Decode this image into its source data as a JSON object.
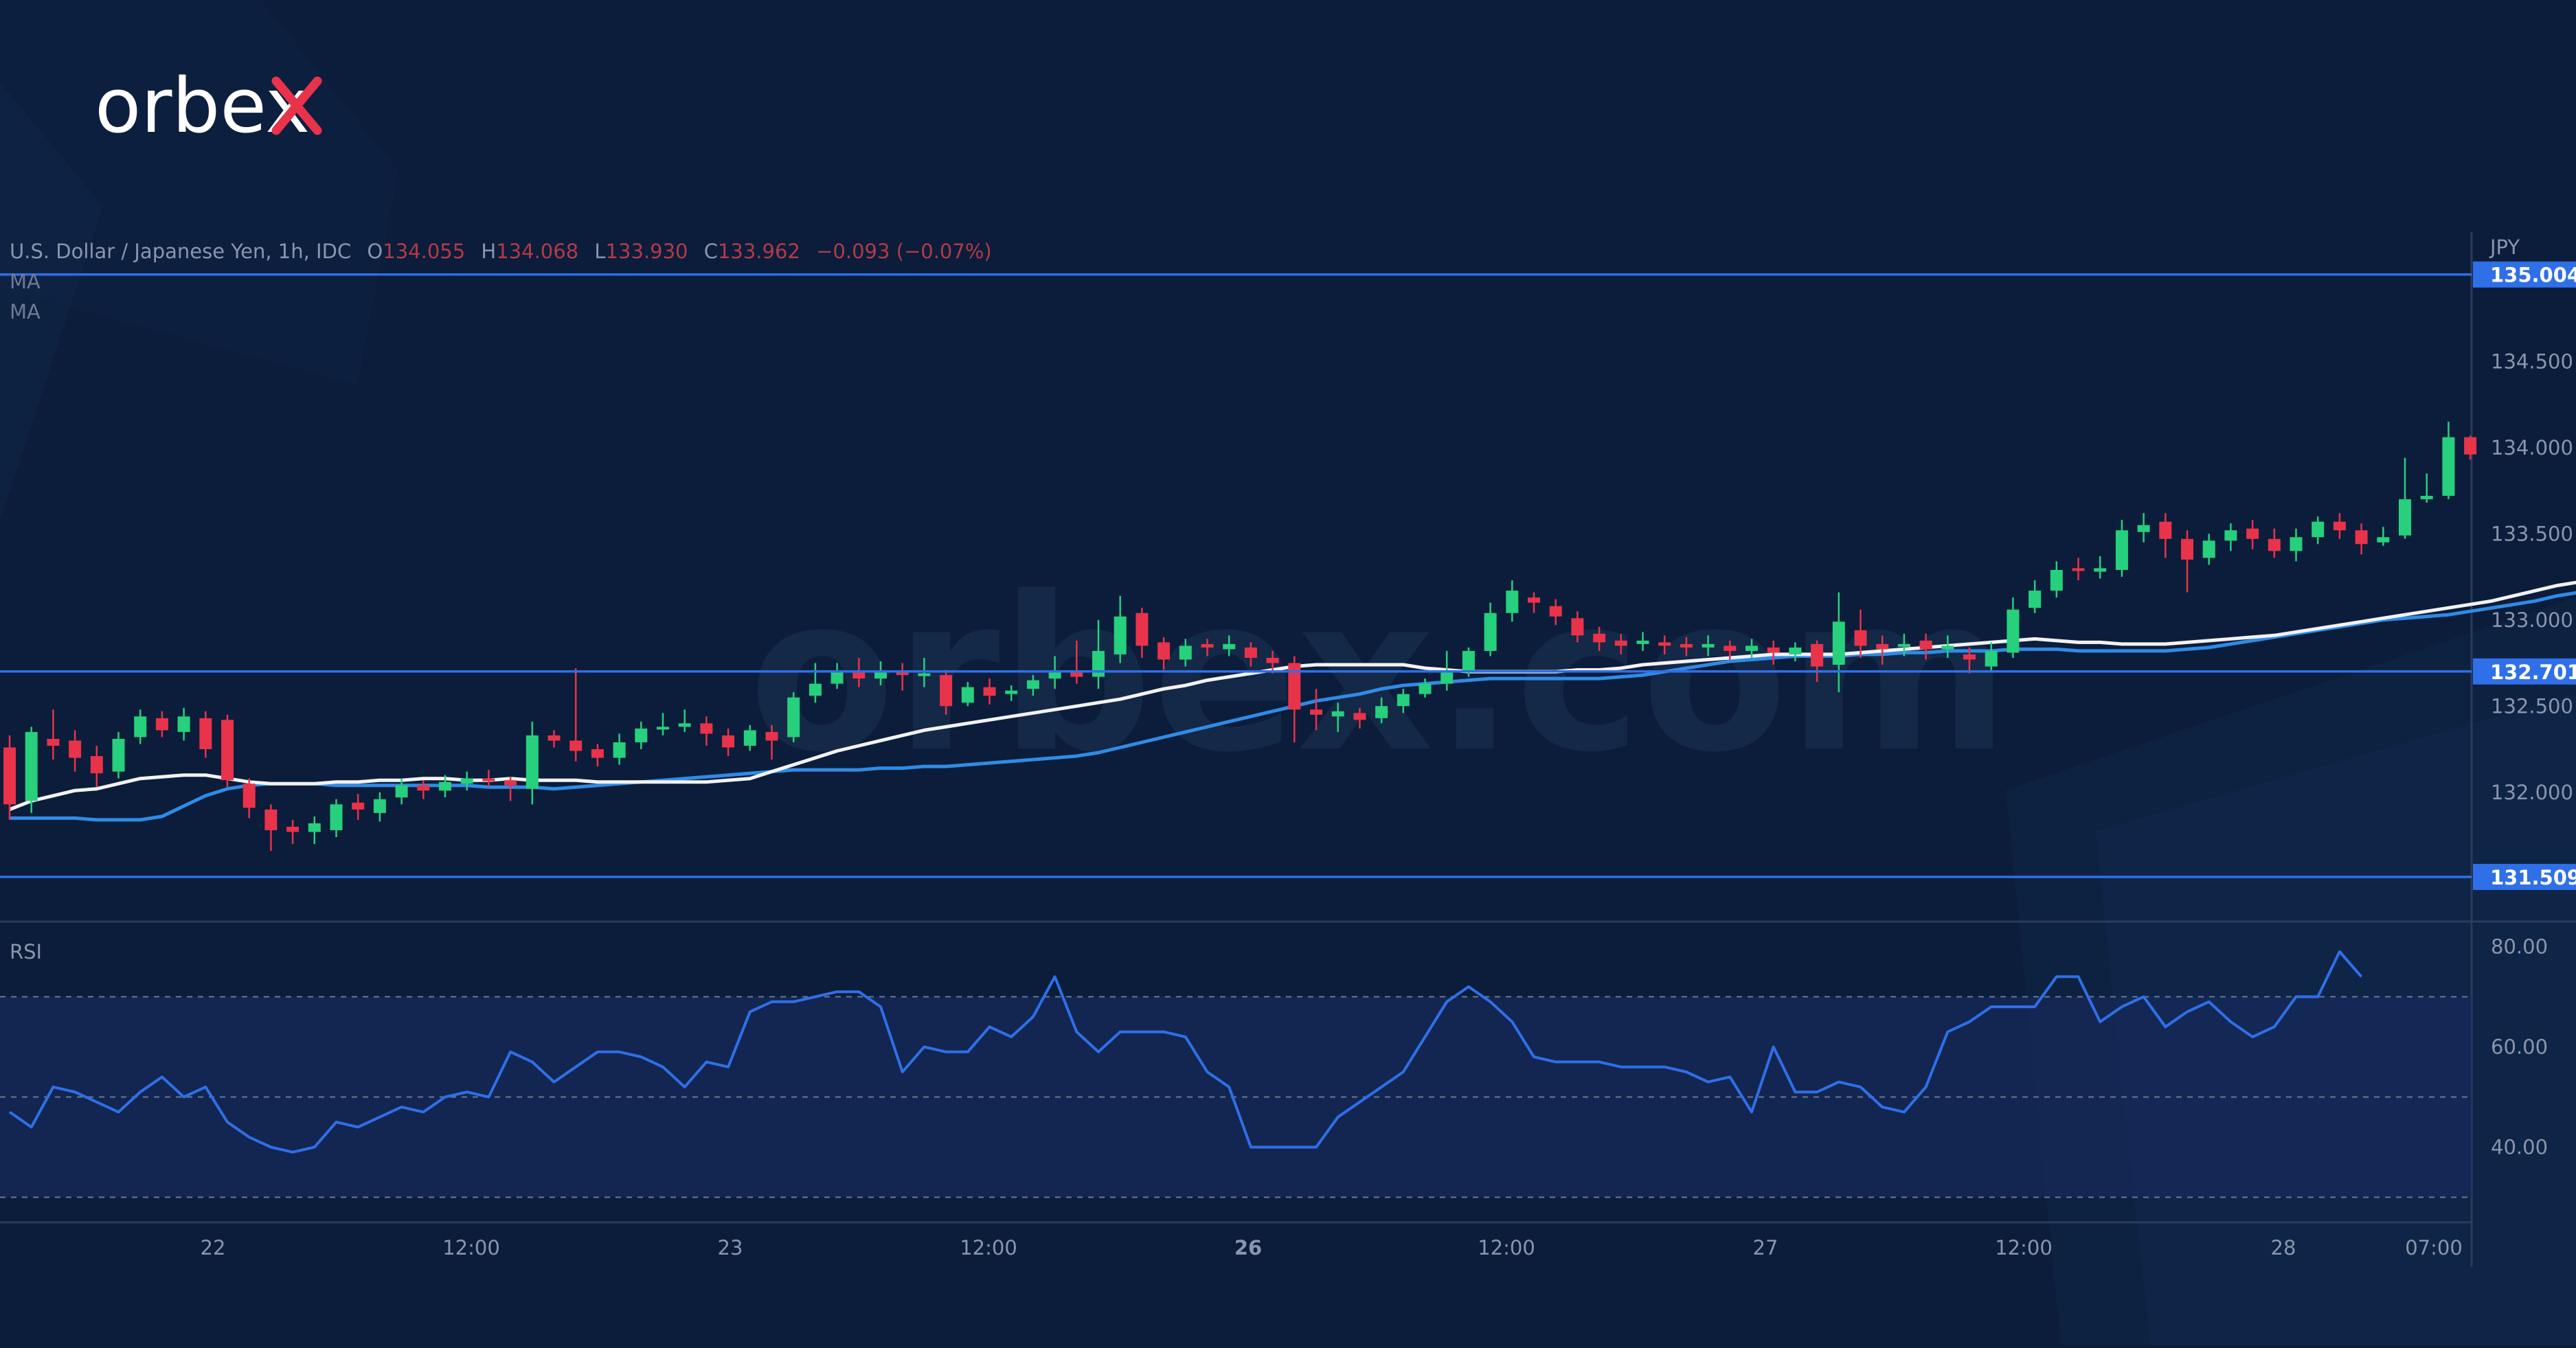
{
  "brand": {
    "logo_text": "orbex",
    "watermark": "orbex.com"
  },
  "header": {
    "symbol": "U.S. Dollar / Japanese Yen, 1h, IDC",
    "o_label": "O",
    "o_value": "134.055",
    "h_label": "H",
    "h_value": "134.068",
    "l_label": "L",
    "l_value": "133.930",
    "c_label": "C",
    "c_value": "133.962",
    "change": "−0.093 (−0.07%)",
    "ma1": "MA",
    "ma2": "MA"
  },
  "colors": {
    "bg": "#0b1d3a",
    "up": "#26d07c",
    "down": "#e8334a",
    "level": "#2f6fe8",
    "ma_fast": "#f2f2f2",
    "ma_slow": "#2f8be6",
    "rsi": "#2f6fe8",
    "text": "#8a96ab"
  },
  "chart_data": [
    {
      "type": "candlestick",
      "title": "U.S. Dollar / Japanese Yen, 1h, IDC",
      "currency": "JPY",
      "ylim": [
        131.25,
        135.25
      ],
      "y_ticks": [
        "134.500",
        "134.000",
        "133.500",
        "133.000",
        "132.500",
        "132.000"
      ],
      "x_ticks": [
        "22",
        "12:00",
        "23",
        "12:00",
        "26",
        "12:00",
        "27",
        "12:00",
        "28",
        "07:00"
      ],
      "levels": [
        {
          "label": "135.004",
          "value": 135.004
        },
        {
          "label": "132.701",
          "value": 132.701
        },
        {
          "label": "131.509",
          "value": 131.509
        }
      ],
      "candles": [
        [
          132.26,
          131.93,
          132.33,
          131.84
        ],
        [
          131.95,
          132.35,
          132.38,
          131.88
        ],
        [
          132.31,
          132.27,
          132.48,
          132.19
        ],
        [
          132.3,
          132.2,
          132.36,
          132.12
        ],
        [
          132.21,
          132.11,
          132.27,
          132.03
        ],
        [
          132.12,
          132.31,
          132.35,
          132.08
        ],
        [
          132.32,
          132.44,
          132.48,
          132.28
        ],
        [
          132.43,
          132.36,
          132.47,
          132.32
        ],
        [
          132.35,
          132.44,
          132.49,
          132.3
        ],
        [
          132.43,
          132.25,
          132.47,
          132.2
        ],
        [
          132.42,
          132.07,
          132.45,
          132.03
        ],
        [
          132.05,
          131.91,
          132.08,
          131.85
        ],
        [
          131.9,
          131.78,
          131.93,
          131.66
        ],
        [
          131.8,
          131.77,
          131.84,
          131.7
        ],
        [
          131.77,
          131.82,
          131.86,
          131.7
        ],
        [
          131.78,
          131.93,
          131.96,
          131.74
        ],
        [
          131.94,
          131.9,
          131.99,
          131.84
        ],
        [
          131.88,
          131.96,
          132.0,
          131.83
        ],
        [
          131.97,
          132.04,
          132.08,
          131.93
        ],
        [
          132.04,
          132.01,
          132.07,
          131.96
        ],
        [
          132.01,
          132.06,
          132.1,
          131.97
        ],
        [
          132.05,
          132.08,
          132.12,
          132.01
        ],
        [
          132.08,
          132.07,
          132.13,
          132.03
        ],
        [
          132.07,
          132.04,
          132.09,
          131.95
        ],
        [
          132.02,
          132.33,
          132.41,
          131.93
        ],
        [
          132.33,
          132.3,
          132.36,
          132.26
        ],
        [
          132.3,
          132.24,
          132.72,
          132.18
        ],
        [
          132.25,
          132.2,
          132.28,
          132.15
        ],
        [
          132.2,
          132.29,
          132.34,
          132.16
        ],
        [
          132.29,
          132.37,
          132.41,
          132.25
        ],
        [
          132.37,
          132.38,
          132.46,
          132.33
        ],
        [
          132.38,
          132.4,
          132.48,
          132.35
        ],
        [
          132.4,
          132.34,
          132.44,
          132.27
        ],
        [
          132.33,
          132.26,
          132.37,
          132.21
        ],
        [
          132.27,
          132.36,
          132.39,
          132.24
        ],
        [
          132.35,
          132.3,
          132.39,
          132.19
        ],
        [
          132.32,
          132.55,
          132.58,
          132.29
        ],
        [
          132.56,
          132.63,
          132.75,
          132.52
        ],
        [
          132.63,
          132.7,
          132.75,
          132.6
        ],
        [
          132.7,
          132.66,
          132.78,
          132.61
        ],
        [
          132.66,
          132.7,
          132.76,
          132.62
        ],
        [
          132.7,
          132.68,
          132.75,
          132.59
        ],
        [
          132.69,
          132.69,
          132.78,
          132.61
        ],
        [
          132.68,
          132.5,
          132.71,
          132.45
        ],
        [
          132.52,
          132.61,
          132.64,
          132.5
        ],
        [
          132.61,
          132.56,
          132.66,
          132.51
        ],
        [
          132.57,
          132.59,
          132.62,
          132.53
        ],
        [
          132.6,
          132.65,
          132.68,
          132.56
        ],
        [
          132.66,
          132.7,
          132.79,
          132.6
        ],
        [
          132.7,
          132.67,
          132.88,
          132.63
        ],
        [
          132.67,
          132.82,
          133.0,
          132.6
        ],
        [
          132.8,
          133.02,
          133.14,
          132.75
        ],
        [
          133.04,
          132.85,
          133.07,
          132.78
        ],
        [
          132.87,
          132.77,
          132.9,
          132.71
        ],
        [
          132.77,
          132.85,
          132.89,
          132.73
        ],
        [
          132.86,
          132.84,
          132.89,
          132.79
        ],
        [
          132.83,
          132.86,
          132.91,
          132.79
        ],
        [
          132.84,
          132.78,
          132.87,
          132.73
        ],
        [
          132.78,
          132.75,
          132.82,
          132.69
        ],
        [
          132.75,
          132.48,
          132.79,
          132.29
        ],
        [
          132.48,
          132.45,
          132.6,
          132.36
        ],
        [
          132.44,
          132.47,
          132.52,
          132.35
        ],
        [
          132.46,
          132.42,
          132.49,
          132.37
        ],
        [
          132.43,
          132.5,
          132.55,
          132.4
        ],
        [
          132.5,
          132.57,
          132.6,
          132.46
        ],
        [
          132.57,
          132.63,
          132.66,
          132.55
        ],
        [
          132.63,
          132.7,
          132.82,
          132.59
        ],
        [
          132.7,
          132.82,
          132.84,
          132.67
        ],
        [
          132.82,
          133.04,
          133.1,
          132.79
        ],
        [
          133.04,
          133.17,
          133.23,
          132.99
        ],
        [
          133.13,
          133.1,
          133.16,
          133.04
        ],
        [
          133.08,
          133.02,
          133.12,
          132.97
        ],
        [
          133.01,
          132.91,
          133.05,
          132.87
        ],
        [
          132.92,
          132.87,
          132.96,
          132.82
        ],
        [
          132.88,
          132.85,
          132.92,
          132.8
        ],
        [
          132.86,
          132.88,
          132.93,
          132.82
        ],
        [
          132.87,
          132.85,
          132.91,
          132.8
        ],
        [
          132.86,
          132.84,
          132.9,
          132.79
        ],
        [
          132.84,
          132.86,
          132.91,
          132.79
        ],
        [
          132.85,
          132.82,
          132.88,
          132.77
        ],
        [
          132.82,
          132.85,
          132.89,
          132.78
        ],
        [
          132.84,
          132.81,
          132.88,
          132.74
        ],
        [
          132.8,
          132.84,
          132.87,
          132.76
        ],
        [
          132.86,
          132.73,
          132.88,
          132.64
        ],
        [
          132.74,
          132.99,
          133.16,
          132.58
        ],
        [
          132.94,
          132.85,
          133.06,
          132.78
        ],
        [
          132.86,
          132.83,
          132.91,
          132.74
        ],
        [
          132.85,
          132.86,
          132.92,
          132.79
        ],
        [
          132.88,
          132.83,
          132.92,
          132.77
        ],
        [
          132.83,
          132.85,
          132.91,
          132.78
        ],
        [
          132.8,
          132.77,
          132.84,
          132.69
        ],
        [
          132.73,
          132.82,
          132.87,
          132.7
        ],
        [
          132.81,
          133.06,
          133.13,
          132.78
        ],
        [
          133.07,
          133.17,
          133.23,
          133.04
        ],
        [
          133.17,
          133.29,
          133.34,
          133.13
        ],
        [
          133.3,
          133.29,
          133.36,
          133.23
        ],
        [
          133.28,
          133.3,
          133.37,
          133.24
        ],
        [
          133.29,
          133.52,
          133.58,
          133.25
        ],
        [
          133.51,
          133.55,
          133.62,
          133.45
        ],
        [
          133.57,
          133.47,
          133.62,
          133.36
        ],
        [
          133.47,
          133.35,
          133.52,
          133.16
        ],
        [
          133.36,
          133.46,
          133.5,
          133.32
        ],
        [
          133.46,
          133.52,
          133.56,
          133.4
        ],
        [
          133.53,
          133.47,
          133.58,
          133.41
        ],
        [
          133.47,
          133.4,
          133.53,
          133.36
        ],
        [
          133.4,
          133.48,
          133.53,
          133.34
        ],
        [
          133.48,
          133.57,
          133.6,
          133.44
        ],
        [
          133.57,
          133.52,
          133.62,
          133.47
        ],
        [
          133.52,
          133.44,
          133.56,
          133.38
        ],
        [
          133.45,
          133.48,
          133.54,
          133.43
        ],
        [
          133.49,
          133.7,
          133.94,
          133.47
        ],
        [
          133.7,
          133.72,
          133.85,
          133.68
        ],
        [
          133.72,
          134.06,
          134.15,
          133.7
        ],
        [
          134.06,
          133.96,
          134.07,
          133.93
        ]
      ],
      "ma_fast": {
        "name": "MA",
        "values": [
          131.9,
          131.95,
          131.98,
          132.01,
          132.02,
          132.05,
          132.08,
          132.09,
          132.1,
          132.1,
          132.08,
          132.06,
          132.05,
          132.05,
          132.05,
          132.06,
          132.06,
          132.07,
          132.07,
          132.08,
          132.08,
          132.07,
          132.07,
          132.08,
          132.07,
          132.07,
          132.07,
          132.06,
          132.06,
          132.06,
          132.06,
          132.06,
          132.06,
          132.07,
          132.08,
          132.12,
          132.16,
          132.2,
          132.24,
          132.27,
          132.3,
          132.33,
          132.36,
          132.38,
          132.4,
          132.42,
          132.44,
          132.46,
          132.48,
          132.5,
          132.52,
          132.54,
          132.57,
          132.6,
          132.62,
          132.65,
          132.67,
          132.69,
          132.71,
          132.73,
          132.74,
          132.74,
          132.74,
          132.74,
          132.74,
          132.72,
          132.71,
          132.7,
          132.7,
          132.7,
          132.7,
          132.7,
          132.71,
          132.71,
          132.72,
          132.74,
          132.75,
          132.76,
          132.77,
          132.78,
          132.79,
          132.8,
          132.8,
          132.8,
          132.8,
          132.81,
          132.82,
          132.83,
          132.84,
          132.85,
          132.86,
          132.87,
          132.88,
          132.89,
          132.88,
          132.87,
          132.87,
          132.86,
          132.86,
          132.86,
          132.87,
          132.88,
          132.89,
          132.9,
          132.91,
          132.93,
          132.95,
          132.97,
          132.99,
          133.01,
          133.03,
          133.05,
          133.07,
          133.09,
          133.11,
          133.14,
          133.17,
          133.2,
          133.22,
          133.24,
          133.27,
          133.3,
          133.33,
          133.37,
          133.44,
          133.48
        ]
      },
      "ma_slow": {
        "name": "MA",
        "values": [
          131.85,
          131.85,
          131.85,
          131.85,
          131.84,
          131.84,
          131.84,
          131.86,
          131.92,
          131.98,
          132.02,
          132.04,
          132.05,
          132.05,
          132.05,
          132.04,
          132.04,
          132.04,
          132.04,
          132.04,
          132.04,
          132.04,
          132.03,
          132.03,
          132.03,
          132.02,
          132.03,
          132.04,
          132.05,
          132.06,
          132.07,
          132.08,
          132.09,
          132.1,
          132.11,
          132.12,
          132.13,
          132.13,
          132.13,
          132.13,
          132.14,
          132.14,
          132.15,
          132.15,
          132.16,
          132.17,
          132.18,
          132.19,
          132.2,
          132.21,
          132.23,
          132.26,
          132.29,
          132.32,
          132.35,
          132.38,
          132.41,
          132.44,
          132.47,
          132.5,
          132.53,
          132.55,
          132.57,
          132.6,
          132.62,
          132.63,
          132.64,
          132.65,
          132.66,
          132.66,
          132.66,
          132.66,
          132.66,
          132.66,
          132.67,
          132.68,
          132.7,
          132.72,
          132.74,
          132.76,
          132.77,
          132.78,
          132.79,
          132.79,
          132.79,
          132.8,
          132.8,
          132.81,
          132.81,
          132.82,
          132.82,
          132.82,
          132.83,
          132.83,
          132.83,
          132.82,
          132.82,
          132.82,
          132.82,
          132.82,
          132.83,
          132.84,
          132.86,
          132.88,
          132.9,
          132.92,
          132.94,
          132.96,
          132.98,
          133.0,
          133.01,
          133.02,
          133.03,
          133.05,
          133.07,
          133.09,
          133.11,
          133.14,
          133.16,
          133.18,
          133.2,
          133.22,
          133.25,
          133.29,
          133.35,
          133.4
        ]
      }
    },
    {
      "type": "line",
      "title": "RSI",
      "ylim": [
        25,
        85
      ],
      "y_ticks": [
        "80.00",
        "60.00",
        "40.00"
      ],
      "bands": [
        70,
        50,
        30
      ],
      "series": [
        {
          "values": [
            47,
            44,
            52,
            51,
            49,
            47,
            51,
            54,
            50,
            52,
            45,
            42,
            40,
            39,
            40,
            45,
            44,
            46,
            48,
            47,
            50,
            51,
            50,
            59,
            57,
            53,
            56,
            59,
            59,
            58,
            56,
            52,
            57,
            56,
            67,
            69,
            69,
            70,
            71,
            71,
            68,
            55,
            60,
            59,
            59,
            64,
            62,
            66,
            74,
            63,
            59,
            63,
            63,
            63,
            62,
            55,
            52,
            40,
            40,
            40,
            40,
            46,
            49,
            52,
            55,
            62,
            69,
            72,
            69,
            65,
            58,
            57,
            57,
            57,
            56,
            56,
            56,
            55,
            53,
            54,
            47,
            60,
            51,
            51,
            53,
            52,
            48,
            47,
            52,
            63,
            65,
            68,
            68,
            68,
            74,
            74,
            65,
            68,
            70,
            64,
            67,
            69,
            65,
            62,
            64,
            70,
            70,
            79,
            74
          ]
        }
      ]
    }
  ]
}
